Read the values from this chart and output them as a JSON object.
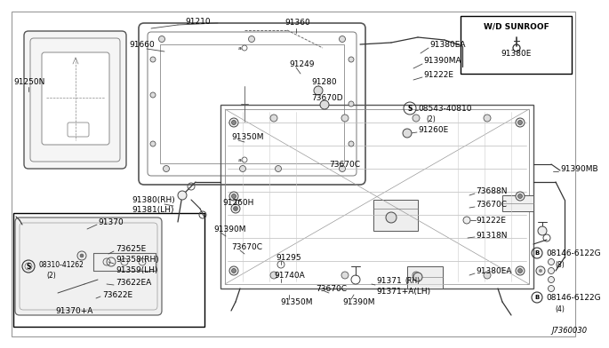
{
  "bg_color": "#ffffff",
  "line_color": "#333333",
  "text_color": "#000000",
  "diagram_id": "J7360030",
  "label_fs": 6.5,
  "small_fs": 5.5
}
